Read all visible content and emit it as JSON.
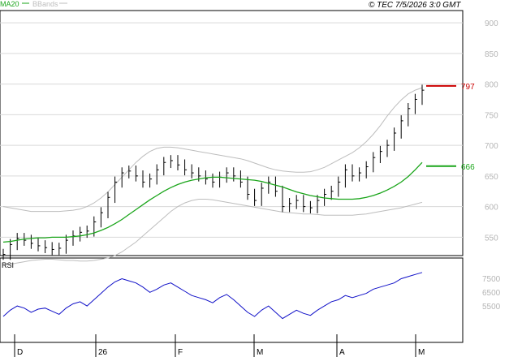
{
  "header": {
    "legend_ma": "MA20",
    "legend_bb": "BBands",
    "copyright": "© TEC 7/5/2026 3:0 GMT"
  },
  "colors": {
    "ma": "#1aa51a",
    "bbands": "#bdbdbd",
    "price": "#000000",
    "rsi": "#1010c8",
    "level_red": "#cc0000",
    "level_green": "#1aa51a",
    "grid": "#d9d9d9"
  },
  "chart_data": [
    {
      "type": "line",
      "panel": "price",
      "y_ticks": [
        550,
        600,
        650,
        700,
        750,
        800,
        850,
        900
      ],
      "ylim": [
        520,
        920
      ],
      "x_labels": [
        "D",
        "26",
        "F",
        "M",
        "A",
        "M"
      ],
      "levels": [
        {
          "label": "797",
          "value": 797,
          "color": "#cc0000"
        },
        {
          "label": "666",
          "value": 666,
          "color": "#1aa51a"
        }
      ],
      "series": [
        {
          "name": "MA20",
          "values": [
            542,
            543,
            545,
            547,
            548,
            549,
            549,
            550,
            550,
            550,
            551,
            552,
            554,
            557,
            561,
            566,
            572,
            579,
            587,
            595,
            603,
            611,
            618,
            625,
            631,
            636,
            640,
            643,
            645,
            647,
            648,
            648,
            647,
            646,
            645,
            644,
            643,
            641,
            638,
            635,
            632,
            628,
            624,
            621,
            618,
            616,
            614,
            613,
            612,
            612,
            612,
            613,
            615,
            618,
            622,
            627,
            633,
            640,
            649,
            660,
            672
          ]
        },
        {
          "name": "upper",
          "values": [
            600,
            598,
            596,
            594,
            592,
            592,
            592,
            592,
            592,
            593,
            594,
            596,
            600,
            606,
            614,
            624,
            636,
            648,
            660,
            672,
            682,
            690,
            695,
            697,
            697,
            696,
            694,
            692,
            690,
            688,
            686,
            684,
            682,
            680,
            678,
            675,
            671,
            667,
            663,
            660,
            658,
            657,
            656,
            656,
            657,
            660,
            664,
            670,
            676,
            682,
            688,
            696,
            706,
            718,
            732,
            748,
            762,
            774,
            784,
            790,
            794
          ]
        },
        {
          "name": "lower",
          "values": [
            505,
            506,
            508,
            510,
            512,
            513,
            514,
            514,
            513,
            512,
            512,
            511,
            511,
            512,
            514,
            516,
            520,
            526,
            534,
            542,
            552,
            562,
            572,
            582,
            592,
            600,
            606,
            610,
            612,
            612,
            611,
            609,
            607,
            605,
            603,
            601,
            599,
            597,
            595,
            593,
            591,
            590,
            589,
            588,
            588,
            587,
            586,
            586,
            586,
            586,
            586,
            587,
            588,
            590,
            592,
            594,
            596,
            598,
            601,
            604,
            607
          ]
        },
        {
          "name": "close",
          "values": [
            522,
            538,
            548,
            545,
            540,
            536,
            533,
            530,
            532,
            545,
            552,
            558,
            560,
            575,
            590,
            615,
            640,
            655,
            658,
            650,
            640,
            645,
            660,
            672,
            675,
            668,
            660,
            655,
            650,
            645,
            640,
            648,
            655,
            650,
            640,
            620,
            610,
            630,
            640,
            625,
            600,
            605,
            610,
            600,
            598,
            610,
            620,
            625,
            640,
            660,
            650,
            655,
            665,
            680,
            690,
            700,
            720,
            740,
            760,
            775,
            790
          ]
        }
      ]
    },
    {
      "type": "line",
      "panel": "rsi",
      "title": "RSI",
      "y_ticks": [
        5500,
        6500,
        7500
      ],
      "series": [
        {
          "name": "RSI",
          "values": [
            42,
            48,
            52,
            50,
            46,
            49,
            50,
            47,
            44,
            50,
            54,
            56,
            52,
            58,
            64,
            70,
            75,
            78,
            76,
            74,
            70,
            65,
            68,
            72,
            74,
            70,
            66,
            62,
            60,
            58,
            55,
            60,
            63,
            58,
            52,
            46,
            42,
            48,
            52,
            46,
            40,
            44,
            48,
            45,
            43,
            48,
            52,
            56,
            58,
            62,
            60,
            62,
            64,
            68,
            70,
            72,
            74,
            78,
            80,
            82,
            84
          ]
        }
      ]
    }
  ]
}
